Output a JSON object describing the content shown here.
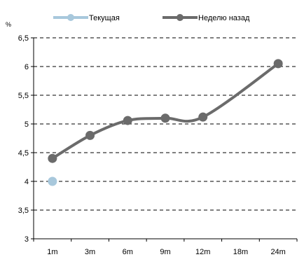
{
  "chart_data": {
    "type": "line",
    "ylabel": "%",
    "categories": [
      "1m",
      "3m",
      "6m",
      "9m",
      "12m",
      "18m",
      "24m"
    ],
    "ylim": [
      3,
      6.5
    ],
    "yticks": [
      3,
      3.5,
      4,
      4.5,
      5,
      5.5,
      6,
      6.5
    ],
    "ytick_labels": [
      "3",
      "3,5",
      "4",
      "4,5",
      "5",
      "5,5",
      "6",
      "6,5"
    ],
    "grid": "horizontal-dashed",
    "legend_position": "top",
    "series": [
      {
        "name": "Текущая",
        "color": "#a8c8dc",
        "smooth": false,
        "values": [
          4.0,
          null,
          null,
          null,
          null,
          null,
          null
        ]
      },
      {
        "name": "Неделю назад",
        "color": "#6b6b6b",
        "smooth": true,
        "values": [
          4.4,
          4.8,
          5.06,
          5.1,
          5.12,
          null,
          6.05
        ]
      }
    ]
  }
}
